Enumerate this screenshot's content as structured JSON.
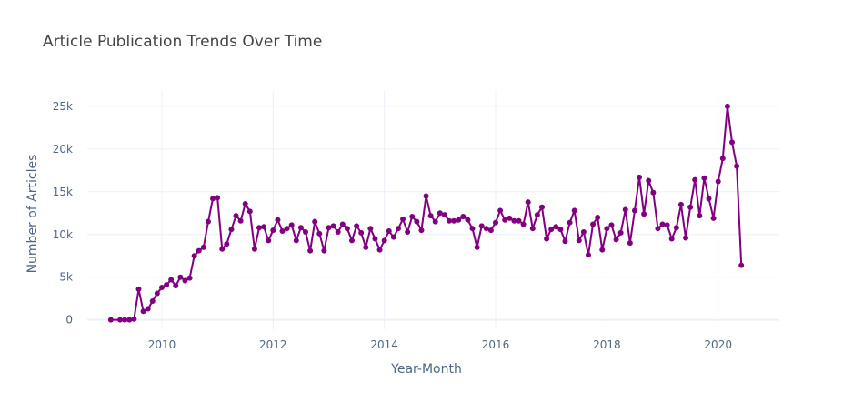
{
  "chart_data": {
    "type": "line",
    "title": "Article Publication Trends Over Time",
    "x_label": "Year-Month",
    "y_label": "Number of Articles",
    "x": [
      "2009-02",
      "2009-04",
      "2009-05",
      "2009-06",
      "2009-07",
      "2009-08",
      "2009-09",
      "2009-10",
      "2009-11",
      "2009-12",
      "2010-01",
      "2010-02",
      "2010-03",
      "2010-04",
      "2010-05",
      "2010-06",
      "2010-07",
      "2010-08",
      "2010-09",
      "2010-10",
      "2010-11",
      "2010-12",
      "2011-01",
      "2011-02",
      "2011-03",
      "2011-04",
      "2011-05",
      "2011-06",
      "2011-07",
      "2011-08",
      "2011-09",
      "2011-10",
      "2011-11",
      "2011-12",
      "2012-01",
      "2012-02",
      "2012-03",
      "2012-04",
      "2012-05",
      "2012-06",
      "2012-07",
      "2012-08",
      "2012-09",
      "2012-10",
      "2012-11",
      "2012-12",
      "2013-01",
      "2013-02",
      "2013-03",
      "2013-04",
      "2013-05",
      "2013-06",
      "2013-07",
      "2013-08",
      "2013-09",
      "2013-10",
      "2013-11",
      "2013-12",
      "2014-01",
      "2014-02",
      "2014-03",
      "2014-04",
      "2014-05",
      "2014-06",
      "2014-07",
      "2014-08",
      "2014-09",
      "2014-10",
      "2014-11",
      "2014-12",
      "2015-01",
      "2015-02",
      "2015-03",
      "2015-04",
      "2015-05",
      "2015-06",
      "2015-07",
      "2015-08",
      "2015-09",
      "2015-10",
      "2015-11",
      "2015-12",
      "2016-01",
      "2016-02",
      "2016-03",
      "2016-04",
      "2016-05",
      "2016-06",
      "2016-07",
      "2016-08",
      "2016-09",
      "2016-10",
      "2016-11",
      "2016-12",
      "2017-01",
      "2017-02",
      "2017-03",
      "2017-04",
      "2017-05",
      "2017-06",
      "2017-07",
      "2017-08",
      "2017-09",
      "2017-10",
      "2017-11",
      "2017-12",
      "2018-01",
      "2018-02",
      "2018-03",
      "2018-04",
      "2018-05",
      "2018-06",
      "2018-07",
      "2018-08",
      "2018-09",
      "2018-10",
      "2018-11",
      "2018-12",
      "2019-01",
      "2019-02",
      "2019-03",
      "2019-04",
      "2019-05",
      "2019-06",
      "2019-07",
      "2019-08",
      "2019-09",
      "2019-10",
      "2019-11",
      "2019-12",
      "2020-01",
      "2020-02",
      "2020-03",
      "2020-04",
      "2020-05",
      "2020-06"
    ],
    "series": [
      {
        "name": "Number of Articles",
        "color": "#800080",
        "values": [
          0,
          0,
          0,
          0,
          100,
          3600,
          1000,
          1300,
          2200,
          3100,
          3800,
          4100,
          4700,
          4000,
          5000,
          4600,
          4900,
          7500,
          8100,
          8500,
          11500,
          14200,
          14300,
          8300,
          8900,
          10600,
          12200,
          11600,
          13600,
          12700,
          8300,
          10800,
          10900,
          9300,
          10500,
          11700,
          10400,
          10700,
          11100,
          9300,
          10800,
          10300,
          8100,
          11500,
          10100,
          8100,
          10800,
          11000,
          10300,
          11200,
          10700,
          9300,
          11000,
          10200,
          8500,
          10700,
          9500,
          8200,
          9300,
          10400,
          9700,
          10700,
          11800,
          10300,
          12100,
          11500,
          10500,
          14500,
          12200,
          11500,
          12500,
          12300,
          11600,
          11600,
          11700,
          12100,
          11700,
          10700,
          8500,
          11000,
          10700,
          10500,
          11400,
          12800,
          11700,
          11900,
          11600,
          11600,
          11200,
          13800,
          10700,
          12300,
          13200,
          9500,
          10600,
          10900,
          10600,
          9200,
          11400,
          12800,
          9300,
          10300,
          7600,
          11200,
          12000,
          8200,
          10700,
          11100,
          9400,
          10200,
          12900,
          9000,
          12800,
          16700,
          12400,
          16300,
          14900,
          10700,
          11200,
          11100,
          9500,
          10800,
          13500,
          9600,
          13200,
          16400,
          12200,
          16600,
          14200,
          11900,
          16200,
          18900,
          25000,
          20800,
          18000,
          6400
        ]
      }
    ],
    "xlim": [
      2008.66,
      2021.1
    ],
    "xticks": [
      2010,
      2012,
      2014,
      2016,
      2018,
      2020
    ],
    "ylim": [
      -1100,
      26800
    ],
    "yticks": [
      0,
      {
        "value": 5000,
        "label": "5k"
      },
      {
        "value": 10000,
        "label": "10k"
      },
      {
        "value": 15000,
        "label": "15k"
      },
      {
        "value": 20000,
        "label": "20k"
      },
      {
        "value": 25000,
        "label": "25k"
      }
    ],
    "grid": true
  }
}
